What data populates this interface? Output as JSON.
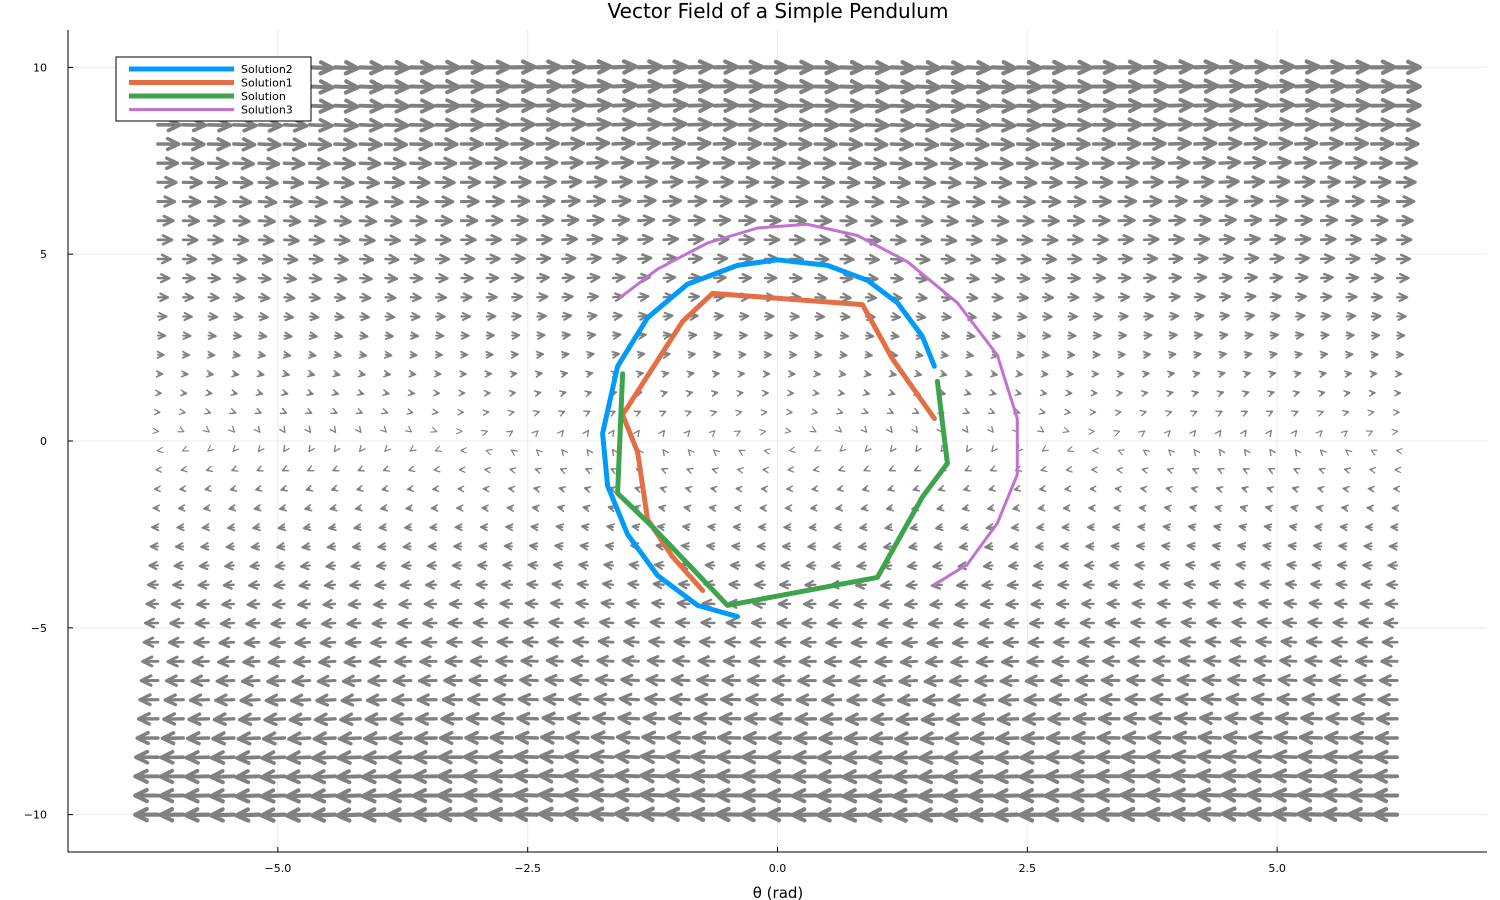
{
  "chart_data": {
    "type": "line",
    "title": "Vector Field of a Simple Pendulum",
    "xlabel": "θ (rad)",
    "ylabel": "",
    "xlim": [
      -7.1,
      7.1
    ],
    "ylim": [
      -11,
      11
    ],
    "xticks": [
      -5.0,
      -2.5,
      0.0,
      2.5,
      5.0
    ],
    "xtick_labels": [
      "−5.0",
      "−2.5",
      "0.0",
      "2.5",
      "5.0"
    ],
    "yticks": [
      -10,
      -5,
      0,
      5,
      10
    ],
    "ytick_labels": [
      "−10",
      "−5",
      "0",
      "5",
      "10"
    ],
    "grid": true,
    "legend": "top-left",
    "vector_field": {
      "theta_range": [
        -6.2,
        6.2
      ],
      "omega_range": [
        -10,
        10
      ],
      "nx": 50,
      "ny": 40,
      "color": "#808080"
    },
    "series": [
      {
        "name": "Solution2",
        "color": "#009AFA",
        "width": 5,
        "x": [
          1.57,
          1.45,
          1.2,
          0.9,
          0.5,
          0.0,
          -0.4,
          -0.9,
          -1.3,
          -1.6,
          -1.75,
          -1.7,
          -1.5,
          -1.2,
          -0.8,
          -0.4
        ],
        "y": [
          2.0,
          2.8,
          3.7,
          4.3,
          4.7,
          4.85,
          4.7,
          4.2,
          3.3,
          2.0,
          0.2,
          -1.2,
          -2.5,
          -3.6,
          -4.4,
          -4.7
        ]
      },
      {
        "name": "Solution1",
        "color": "#E26F46",
        "width": 5,
        "x": [
          1.57,
          1.15,
          0.85,
          -0.65,
          -0.95,
          -1.55,
          -1.4,
          -1.3,
          -1.05,
          -0.75
        ],
        "y": [
          0.6,
          2.2,
          3.65,
          3.95,
          3.2,
          0.7,
          -0.3,
          -2.1,
          -3.1,
          -4.0
        ]
      },
      {
        "name": "Solution",
        "color": "#3DA44D",
        "width": 5,
        "x": [
          -1.55,
          -1.6,
          -1.25,
          -0.5,
          0.4,
          1.0,
          1.45,
          1.7,
          1.6
        ],
        "y": [
          1.8,
          -1.4,
          -2.3,
          -4.4,
          -3.95,
          -3.65,
          -1.5,
          -0.6,
          1.6
        ]
      },
      {
        "name": "Solution3",
        "color": "#C271D2",
        "width": 3,
        "x": [
          -1.57,
          -1.2,
          -0.7,
          -0.2,
          0.3,
          0.8,
          1.3,
          1.8,
          2.2,
          2.4,
          2.4,
          2.2,
          1.9,
          1.57
        ],
        "y": [
          3.85,
          4.6,
          5.3,
          5.7,
          5.8,
          5.5,
          4.8,
          3.7,
          2.3,
          0.6,
          -0.9,
          -2.2,
          -3.3,
          -3.85
        ]
      }
    ]
  }
}
